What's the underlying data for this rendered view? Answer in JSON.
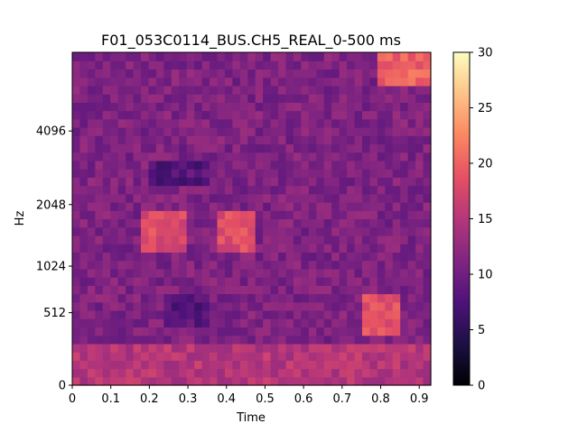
{
  "chart_data": {
    "type": "heatmap",
    "title": "F01_053C0114_BUS.CH5_REAL_0-500 ms",
    "xlabel": "Time",
    "ylabel": "Hz",
    "xlim": [
      0,
      0.93
    ],
    "x_ticks": [
      "0",
      "0.1",
      "0.2",
      "0.3",
      "0.4",
      "0.5",
      "0.6",
      "0.7",
      "0.8",
      "0.9"
    ],
    "y_ticks": [
      "0",
      "512",
      "1024",
      "2048",
      "4096"
    ],
    "y_scale": "mel",
    "colorbar": {
      "min": 0,
      "max": 30,
      "ticks": [
        "0",
        "5",
        "10",
        "15",
        "20",
        "25",
        "30"
      ],
      "colormap": "magma"
    },
    "grid": false,
    "features": [
      {
        "t": [
          0.0,
          0.93
        ],
        "band_hz": [
          0,
          250
        ],
        "level": 15
      },
      {
        "t": [
          0.75,
          0.85
        ],
        "band_hz": [
          300,
          700
        ],
        "level": 19
      },
      {
        "t": [
          0.18,
          0.3
        ],
        "band_hz": [
          1200,
          2000
        ],
        "level": 18
      },
      {
        "t": [
          0.38,
          0.48
        ],
        "band_hz": [
          1200,
          2000
        ],
        "level": 18
      },
      {
        "t": [
          0.23,
          0.35
        ],
        "band_hz": [
          400,
          700
        ],
        "level": 8
      },
      {
        "t": [
          0.2,
          0.35
        ],
        "band_hz": [
          2400,
          3200
        ],
        "level": 8
      },
      {
        "t": [
          0.8,
          0.93
        ],
        "band_hz": [
          6000,
          8000
        ],
        "level": 20
      }
    ]
  }
}
